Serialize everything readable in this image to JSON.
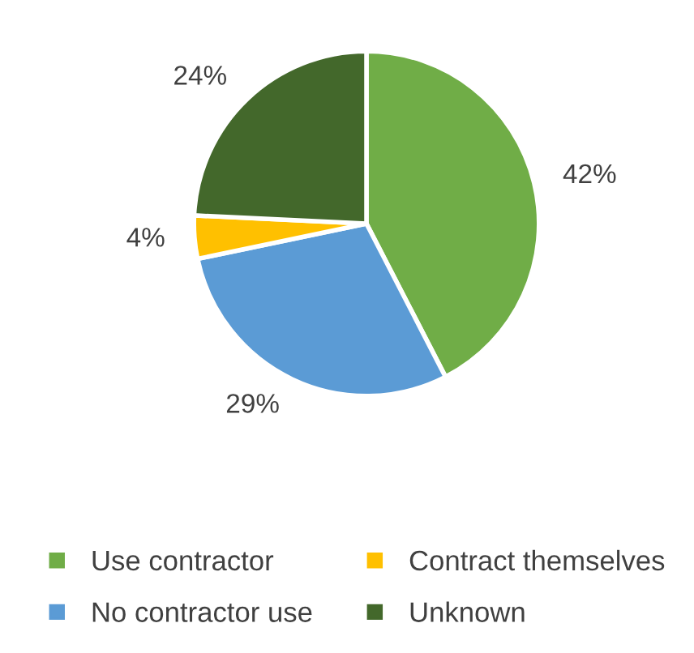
{
  "chart_data": {
    "type": "pie",
    "categories": [
      "Use contractor",
      "No contractor use",
      "Contract themselves",
      "Unknown"
    ],
    "values": [
      42,
      29,
      4,
      24
    ],
    "value_labels": [
      "42%",
      "29%",
      "4%",
      "24%"
    ],
    "colors": [
      "#70ad47",
      "#5b9bd5",
      "#ffc000",
      "#43682b"
    ],
    "legend": "bottom"
  }
}
